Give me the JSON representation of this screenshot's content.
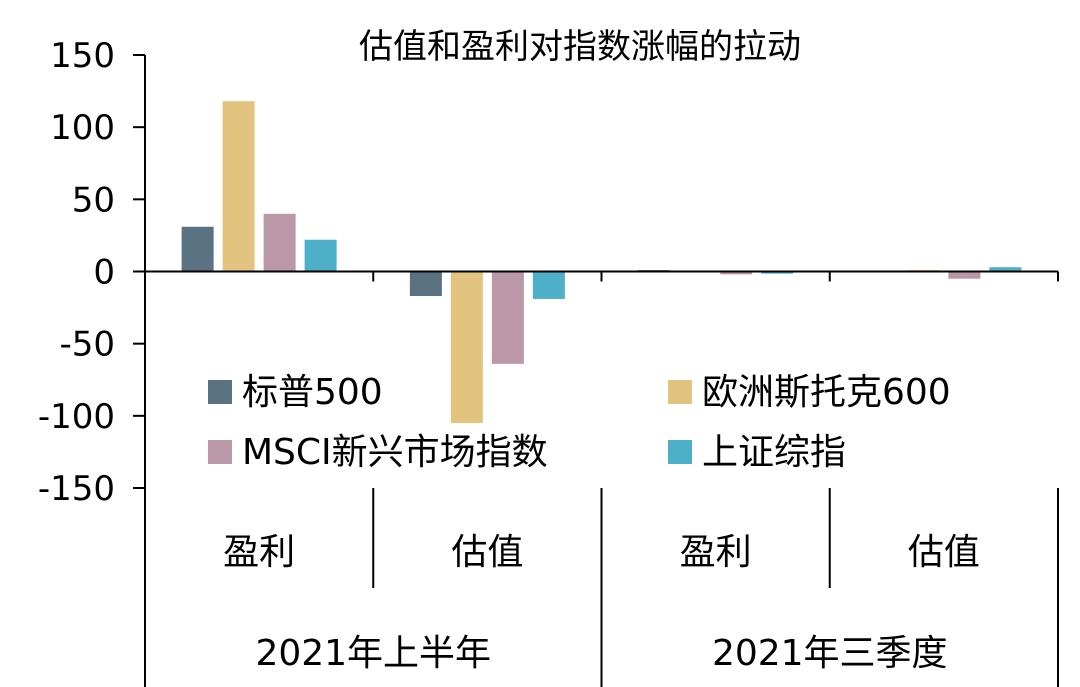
{
  "chart_data": {
    "type": "bar",
    "title": "估值和盈利对指数涨幅的拉动",
    "ylim": [
      -150,
      150
    ],
    "yticks": [
      150,
      100,
      50,
      0,
      -50,
      -100,
      -150
    ],
    "categories": [
      "盈利",
      "估值",
      "盈利",
      "估值"
    ],
    "groups": [
      "2021年上半年",
      "2021年三季度"
    ],
    "series": [
      {
        "name": "标普500",
        "color": "#5b7282",
        "values": [
          31,
          -17,
          1,
          0.5
        ]
      },
      {
        "name": "欧洲斯托克600",
        "color": "#e3c47f",
        "values": [
          118,
          -105,
          0.5,
          1
        ]
      },
      {
        "name": "MSCI新兴市场指数",
        "color": "#bb98a8",
        "values": [
          40,
          -64,
          -2,
          -5
        ]
      },
      {
        "name": "上证综指",
        "color": "#4eb0c8",
        "values": [
          22,
          -19,
          -1.5,
          3
        ]
      }
    ],
    "legend_position": "inside-lower",
    "grid": false
  }
}
